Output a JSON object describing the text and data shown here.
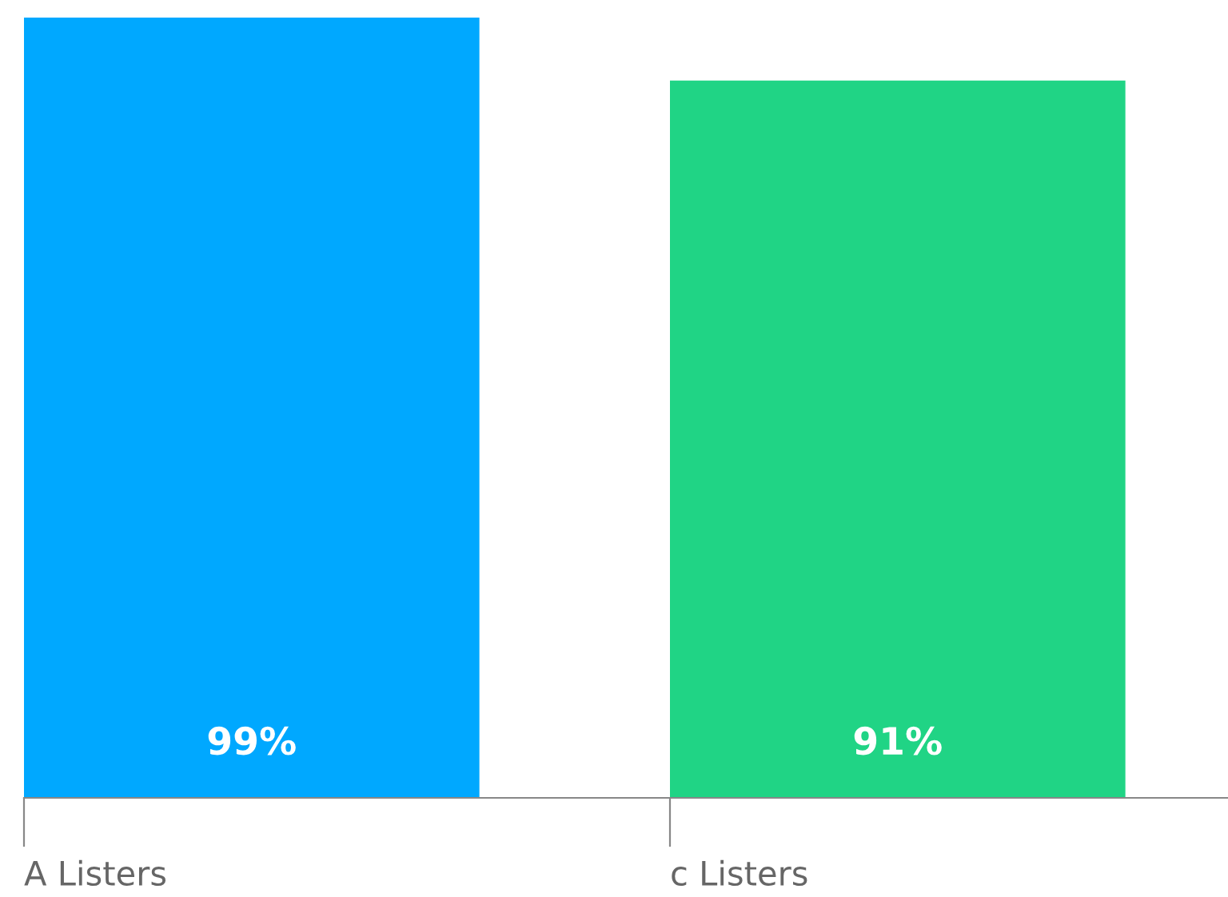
{
  "chart_data": {
    "type": "bar",
    "categories": [
      "A Listers",
      "c Listers"
    ],
    "values": [
      99,
      91
    ],
    "colors": [
      "#00a8ff",
      "#20d485"
    ],
    "value_labels": [
      "99%",
      "91%"
    ],
    "tick_labels": "x",
    "grid": false,
    "legend": false
  }
}
